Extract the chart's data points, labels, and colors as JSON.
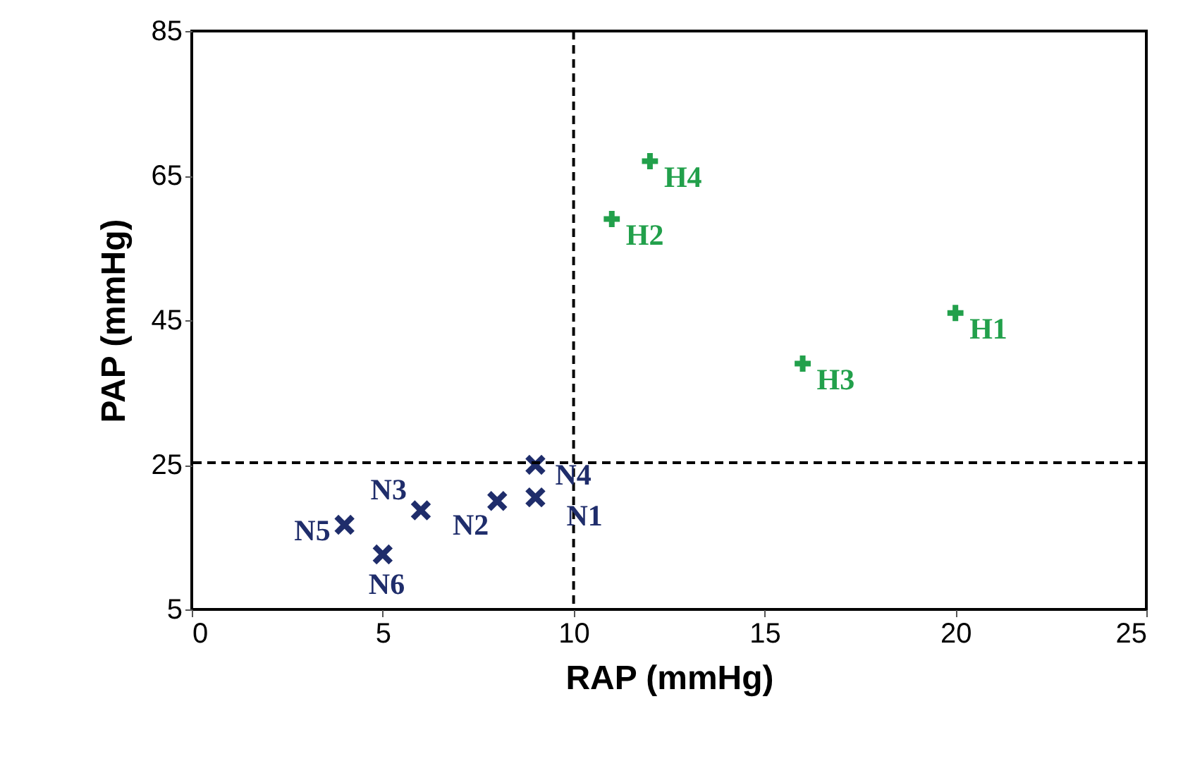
{
  "chart_data": {
    "type": "scatter",
    "xlabel": "RAP (mmHg)",
    "ylabel": "PAP (mmHg)",
    "xlim": [
      0,
      25
    ],
    "xticks": [
      0,
      5,
      10,
      15,
      20,
      25
    ],
    "ylim": [
      5,
      85
    ],
    "yticks": [
      5,
      25,
      45,
      65,
      85
    ],
    "grid": false,
    "series": [
      {
        "color": "#1f2d6b",
        "marker": "x",
        "x": [
          9,
          8,
          6,
          9,
          4,
          5
        ],
        "values": [
          20.5,
          20,
          18.7,
          25,
          16.7,
          12.6
        ]
      },
      {
        "color": "#22a04b",
        "marker": "cross",
        "x": [
          20,
          11,
          16,
          12
        ],
        "values": [
          46,
          59,
          39,
          67
        ]
      }
    ],
    "ref_lines": [
      {
        "axis": "x",
        "value": 10,
        "line_style": "dashed",
        "color": "#000000"
      },
      {
        "axis": "y",
        "value": 25.3,
        "line_style": "dashed",
        "color": "#000000"
      }
    ],
    "annotations": [
      {
        "text": "N1",
        "x": 9,
        "y": 20.5
      },
      {
        "text": "N2",
        "x": 8,
        "y": 20
      },
      {
        "text": "N3",
        "x": 6,
        "y": 18.7
      },
      {
        "text": "N4",
        "x": 9,
        "y": 25
      },
      {
        "text": "N5",
        "x": 4,
        "y": 16.7
      },
      {
        "text": "N6",
        "x": 5,
        "y": 12.6
      },
      {
        "text": "H1",
        "x": 20,
        "y": 46
      },
      {
        "text": "H2",
        "x": 11,
        "y": 59
      },
      {
        "text": "H3",
        "x": 16,
        "y": 39
      },
      {
        "text": "H4",
        "x": 12,
        "y": 67
      }
    ]
  }
}
